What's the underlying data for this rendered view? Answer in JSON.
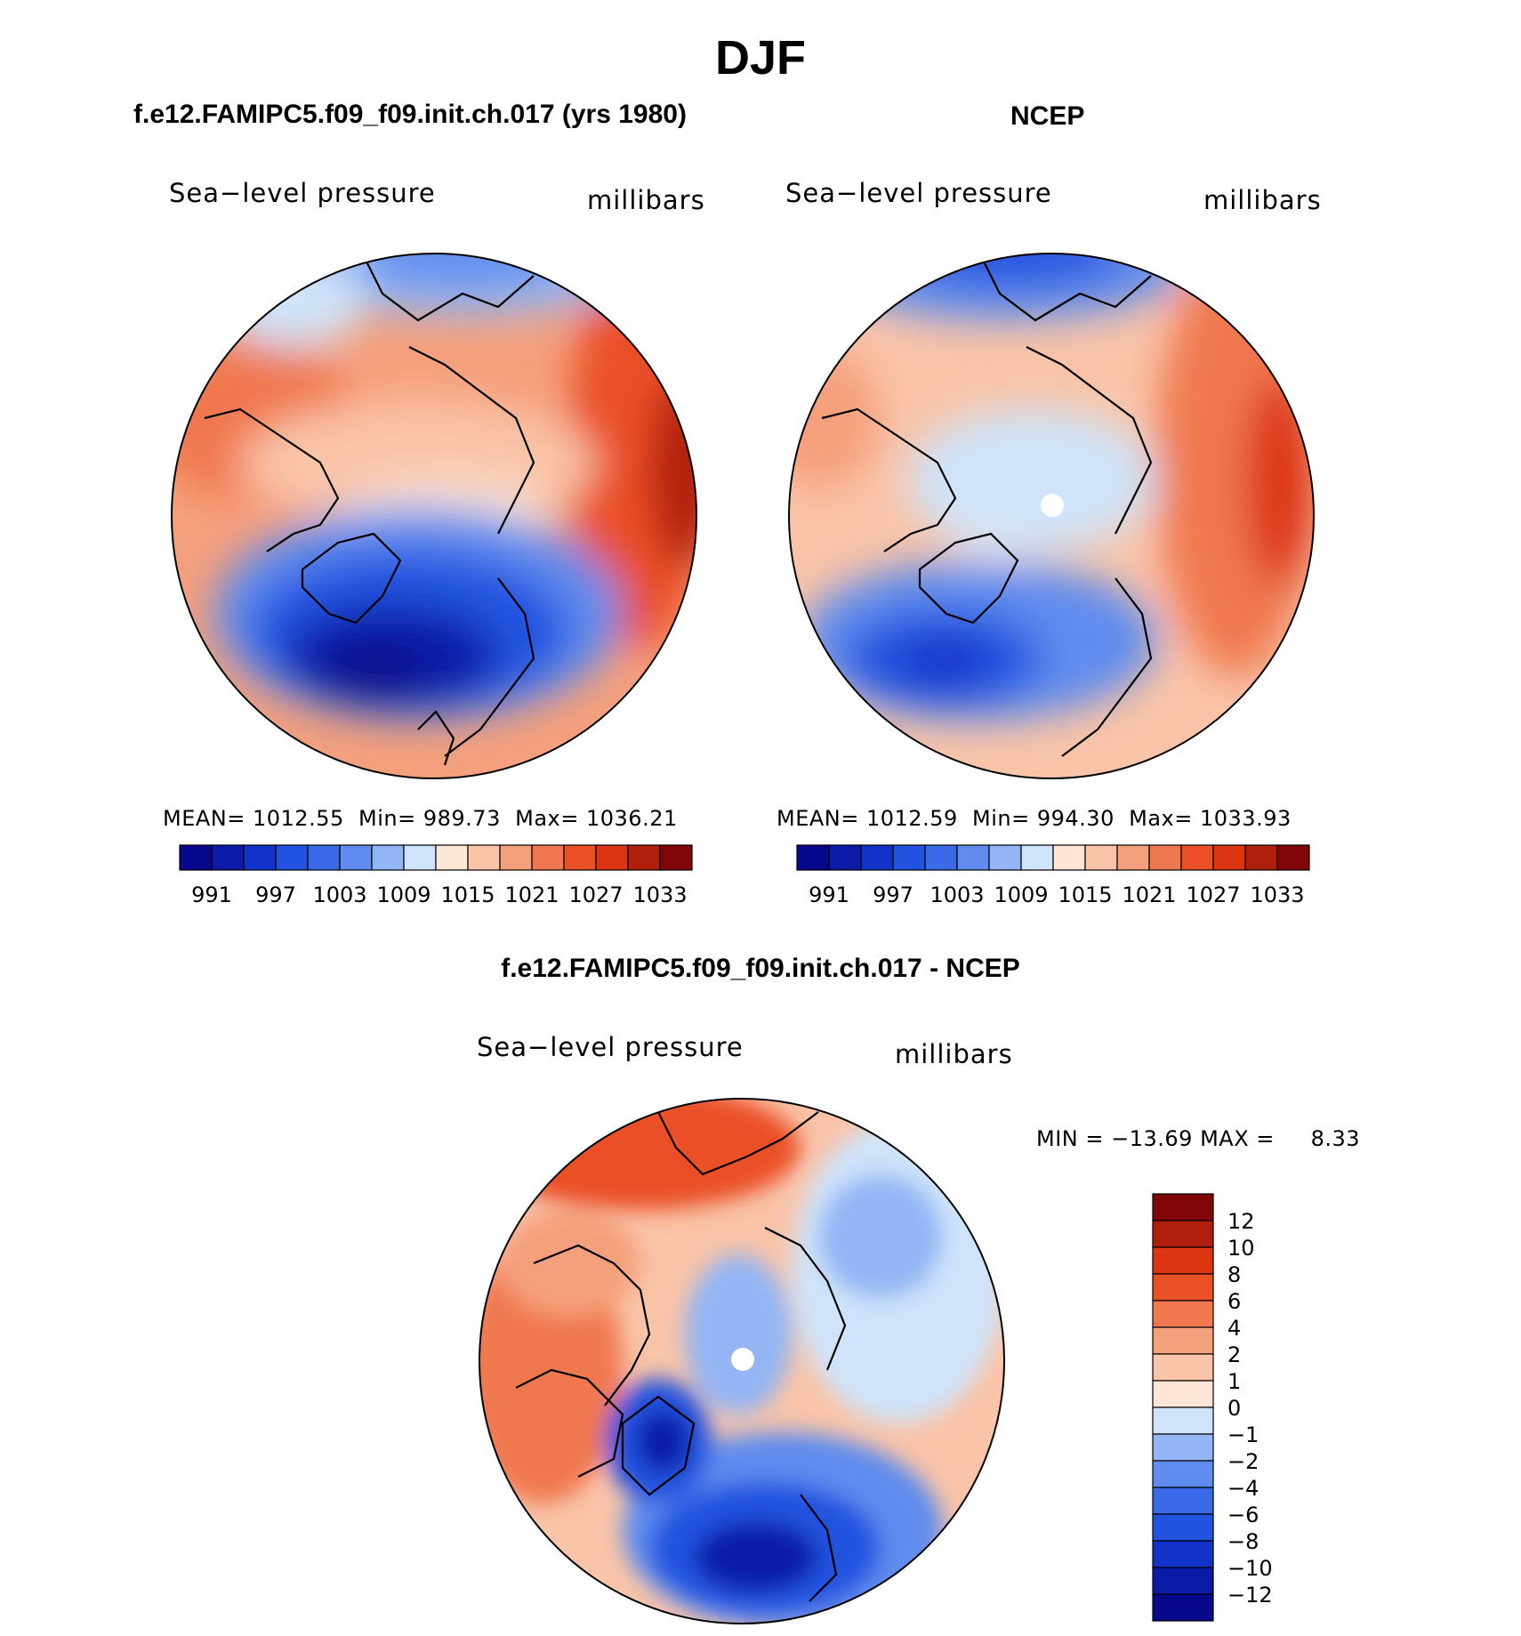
{
  "main_title": "DJF",
  "chart_data": [
    {
      "type": "contour-map",
      "title": "f.e12.FAMIPC5.f09_f09.init.ch.017 (yrs 1980)",
      "subtitle_left": "Sea−level pressure",
      "subtitle_right": "millibars",
      "stats": {
        "mean_label": "MEAN=",
        "mean": "1012.55",
        "min_label": "Min=",
        "min": "989.73",
        "max_label": "Max=",
        "max": "1036.21"
      },
      "colorbar_ticks": [
        "991",
        "997",
        "1003",
        "1009",
        "1015",
        "1021",
        "1027",
        "1033"
      ],
      "colorbar_colors": [
        "#08088c",
        "#0c1aa8",
        "#1233c8",
        "#2352e0",
        "#3b6ae8",
        "#5f8cee",
        "#93b5f4",
        "#cfe4fa",
        "#fde6d6",
        "#f9c4a8",
        "#f5a07c",
        "#f07850",
        "#ea5026",
        "#dc3512",
        "#b01e0c",
        "#800508"
      ]
    },
    {
      "type": "contour-map",
      "title": "NCEP",
      "subtitle_left": "Sea−level pressure",
      "subtitle_right": "millibars",
      "stats": {
        "mean_label": "MEAN=",
        "mean": "1012.59",
        "min_label": "Min=",
        "min": "994.30",
        "max_label": "Max=",
        "max": "1033.93"
      },
      "colorbar_ticks": [
        "991",
        "997",
        "1003",
        "1009",
        "1015",
        "1021",
        "1027",
        "1033"
      ],
      "colorbar_colors": [
        "#08088c",
        "#0c1aa8",
        "#1233c8",
        "#2352e0",
        "#3b6ae8",
        "#5f8cee",
        "#93b5f4",
        "#cfe4fa",
        "#fde6d6",
        "#f9c4a8",
        "#f5a07c",
        "#f07850",
        "#ea5026",
        "#dc3512",
        "#b01e0c",
        "#800508"
      ]
    },
    {
      "type": "contour-map",
      "title": "f.e12.FAMIPC5.f09_f09.init.ch.017 - NCEP",
      "subtitle_left": "Sea−level pressure",
      "subtitle_right": "millibars",
      "stats": {
        "min_label": "MIN =",
        "min": "−13.69",
        "max_label": "MAX =",
        "max": "8.33"
      },
      "colorbar_ticks": [
        "12",
        "10",
        "8",
        "6",
        "4",
        "2",
        "1",
        "0",
        "−1",
        "−2",
        "−4",
        "−6",
        "−8",
        "−10",
        "−12"
      ],
      "colorbar_colors": [
        "#800508",
        "#b01e0c",
        "#dc3512",
        "#ea5026",
        "#f07850",
        "#f5a07c",
        "#f9c4a8",
        "#fde6d6",
        "#cfe4fa",
        "#93b5f4",
        "#5f8cee",
        "#3b6ae8",
        "#2352e0",
        "#1233c8",
        "#0c1aa8",
        "#08088c"
      ]
    }
  ]
}
